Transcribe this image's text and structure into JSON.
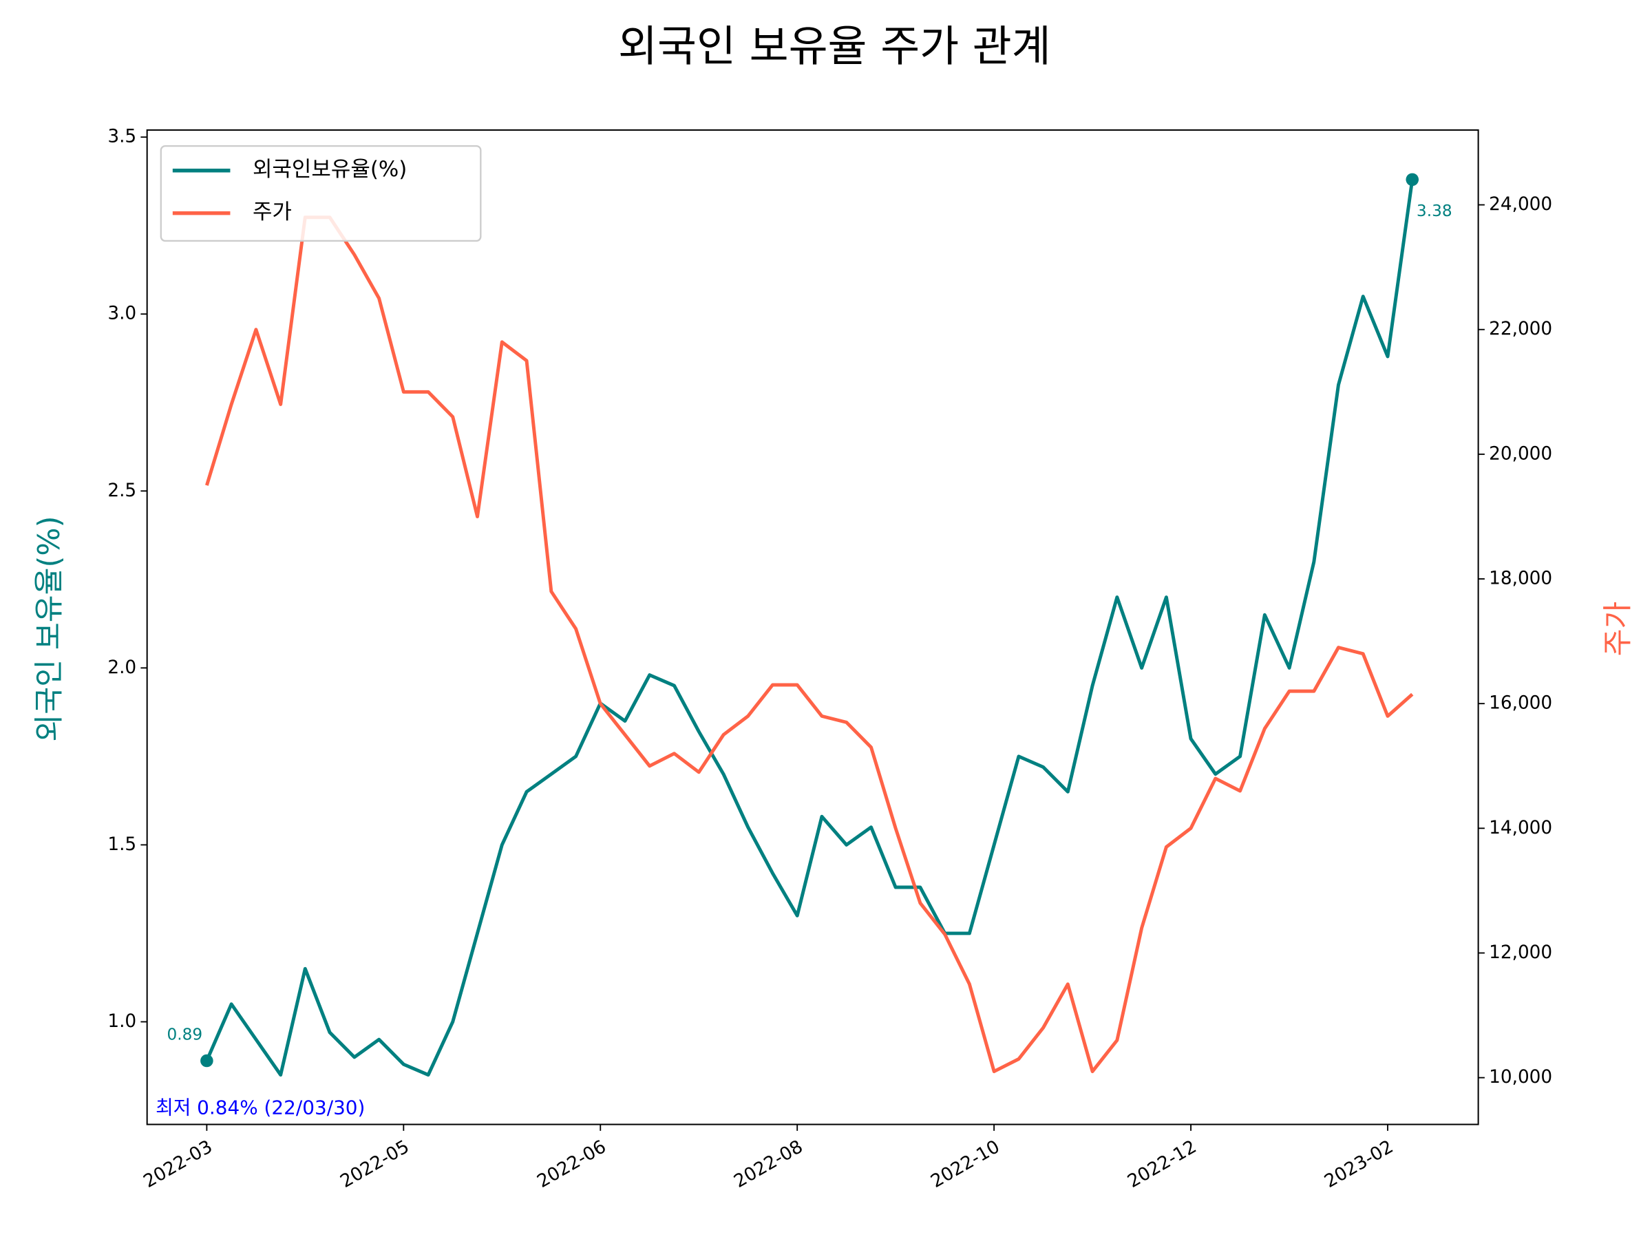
{
  "chart_data": {
    "type": "line",
    "title": "외국인 보유율 주가 관계",
    "ylabel": "외국인 보유율(%)",
    "y2label": "주가",
    "categories": [
      "2022-03",
      null,
      null,
      null,
      null,
      null,
      null,
      null,
      "2022-05",
      null,
      null,
      null,
      null,
      null,
      null,
      null,
      "2022-06",
      null,
      null,
      null,
      null,
      null,
      null,
      null,
      "2022-08",
      null,
      null,
      null,
      null,
      null,
      null,
      null,
      "2022-10",
      null,
      null,
      null,
      null,
      null,
      null,
      null,
      "2022-12",
      null,
      null,
      null,
      null,
      null,
      null,
      null,
      "2023-02",
      null
    ],
    "series": [
      {
        "name": "외국인보유율(%)",
        "color": "#008080",
        "axis": "y",
        "values": [
          0.89,
          1.05,
          0.95,
          0.85,
          1.15,
          0.97,
          0.9,
          0.95,
          0.88,
          0.85,
          1.0,
          1.25,
          1.5,
          1.65,
          1.7,
          1.75,
          1.9,
          1.85,
          1.98,
          1.95,
          1.82,
          1.7,
          1.55,
          1.42,
          1.3,
          1.58,
          1.5,
          1.55,
          1.38,
          1.38,
          1.25,
          1.25,
          1.5,
          1.75,
          1.72,
          1.65,
          1.95,
          2.2,
          2.0,
          2.2,
          1.8,
          1.7,
          1.75,
          2.15,
          2.0,
          2.3,
          2.8,
          3.05,
          2.88,
          3.38
        ]
      },
      {
        "name": "주가",
        "color": "#ff6347",
        "axis": "y2",
        "values": [
          19500,
          20800,
          22000,
          20800,
          23800,
          23800,
          23200,
          22500,
          21000,
          21000,
          20600,
          19000,
          21800,
          21500,
          17800,
          17200,
          16000,
          15500,
          15000,
          15200,
          14900,
          15500,
          15800,
          16300,
          16300,
          15800,
          15700,
          15300,
          14000,
          12800,
          12300,
          11500,
          10100,
          10300,
          10800,
          11500,
          10100,
          10600,
          12400,
          13700,
          14000,
          14800,
          14600,
          15600,
          16200,
          16200,
          16900,
          16800,
          15800,
          16150
        ]
      }
    ],
    "ylim": [
      0.71,
      3.52
    ],
    "yticks": [
      {
        "value": 1.0,
        "label": "1.0"
      },
      1.5,
      {
        "value": 2.0,
        "label": "2.0"
      },
      2.5,
      {
        "value": 3.0,
        "label": "3.0"
      },
      3.5
    ],
    "y2lim": [
      9250,
      25200
    ],
    "y2ticks": [
      {
        "value": 10000,
        "label": "10,000"
      },
      {
        "value": 12000,
        "label": "12,000"
      },
      {
        "value": 14000,
        "label": "14,000"
      },
      {
        "value": 16000,
        "label": "16,000"
      },
      {
        "value": 18000,
        "label": "18,000"
      },
      {
        "value": 20000,
        "label": "20,000"
      },
      {
        "value": 22000,
        "label": "22,000"
      },
      {
        "value": 24000,
        "label": "24,000"
      }
    ],
    "annotations": [
      "0.89",
      "3.38",
      "최저 0.84% (22/03/30)"
    ],
    "legend": "upper left",
    "grid": false
  }
}
